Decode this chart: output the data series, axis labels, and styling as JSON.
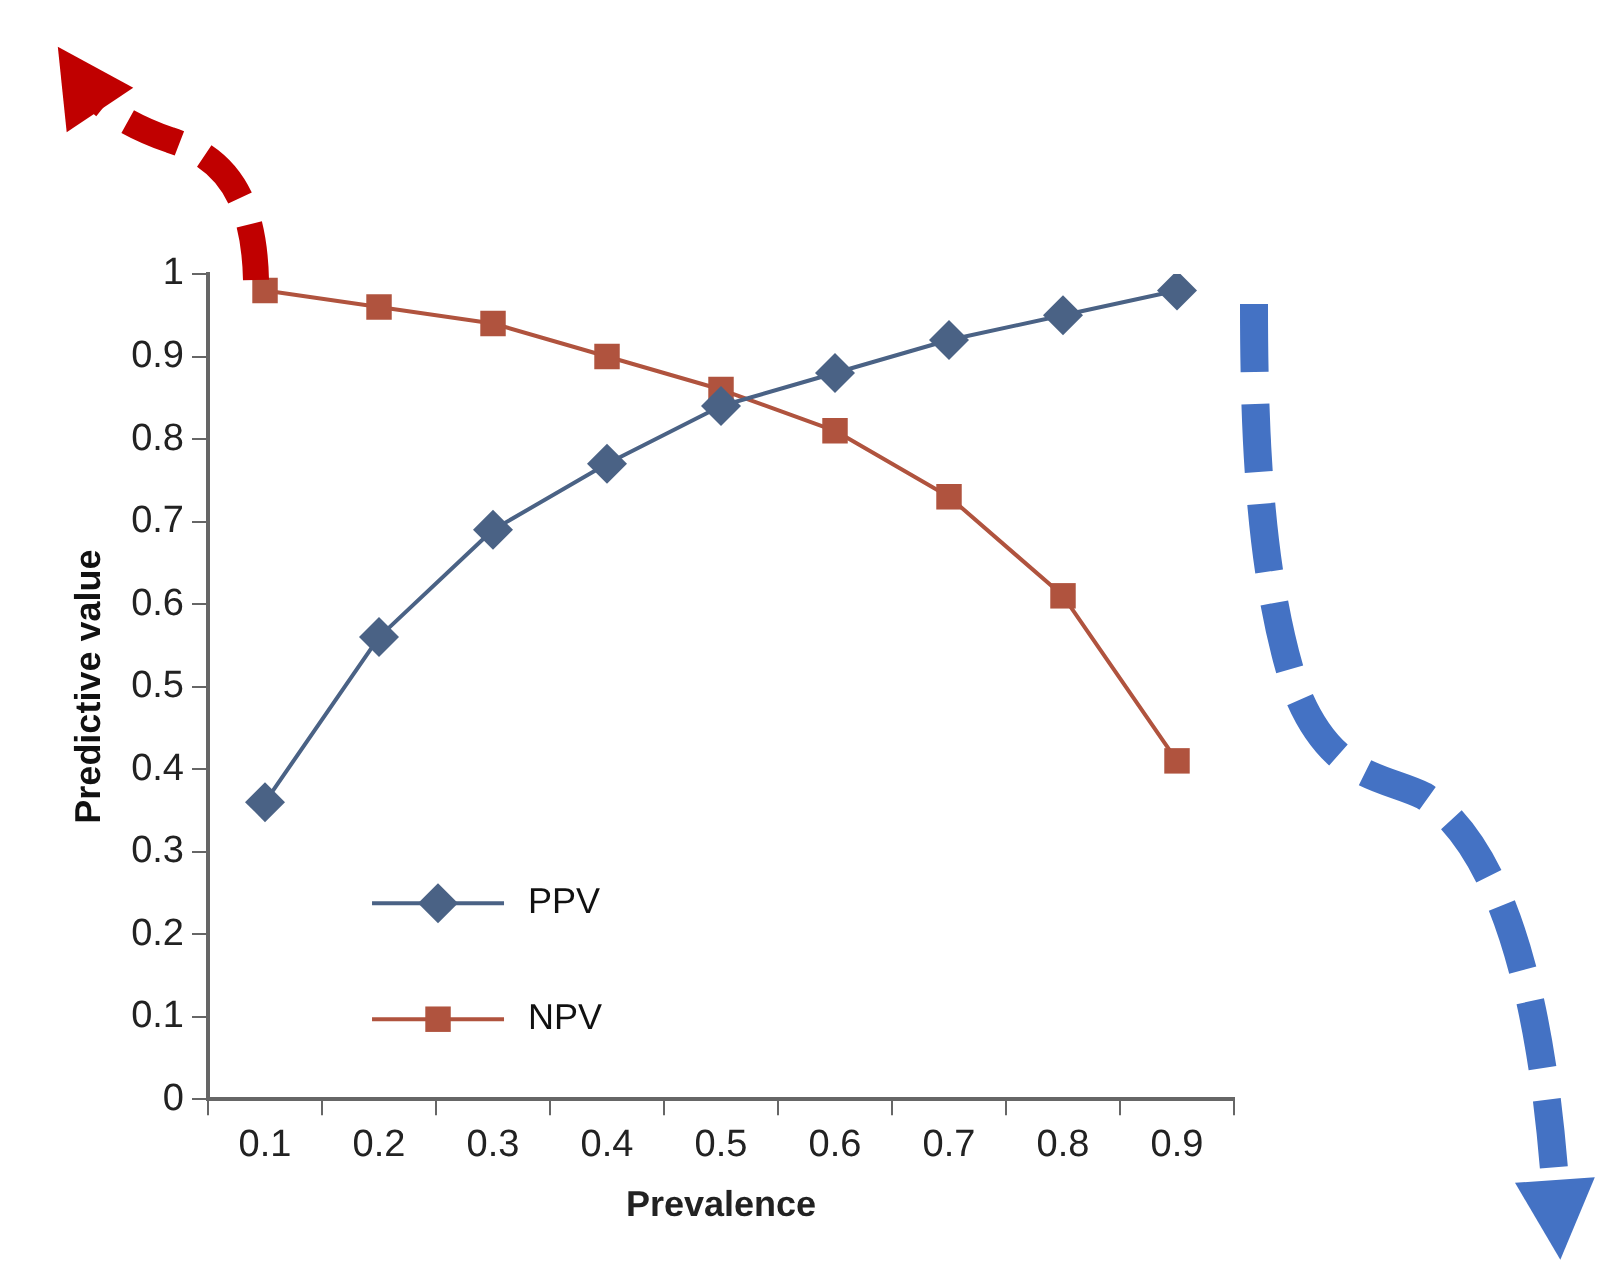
{
  "chart_data": {
    "type": "line",
    "xlabel": "Prevalence",
    "ylabel": "Predictive value",
    "categories": [
      "0.1",
      "0.2",
      "0.3",
      "0.4",
      "0.5",
      "0.6",
      "0.7",
      "0.8",
      "0.9"
    ],
    "series": [
      {
        "name": "PPV",
        "color": "#4a6285",
        "marker": "diamond",
        "values": [
          0.36,
          0.56,
          0.69,
          0.77,
          0.84,
          0.88,
          0.92,
          0.95,
          0.98
        ]
      },
      {
        "name": "NPV",
        "color": "#b0533e",
        "marker": "square",
        "values": [
          0.98,
          0.96,
          0.94,
          0.9,
          0.86,
          0.81,
          0.73,
          0.61,
          0.41
        ]
      }
    ],
    "ylim": [
      0,
      1
    ],
    "yticks": [
      0,
      0.1,
      0.2,
      0.3,
      0.4,
      0.5,
      0.6,
      0.7,
      0.8,
      0.9,
      1
    ],
    "grid": false,
    "legend": "bottom left"
  }
}
